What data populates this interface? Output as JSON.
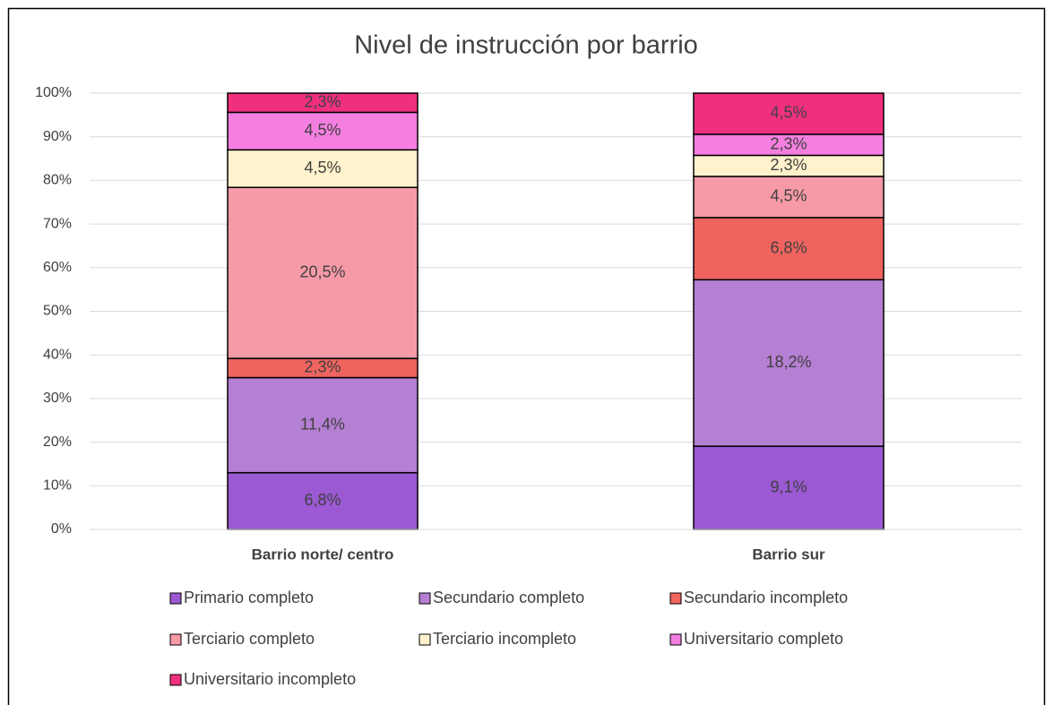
{
  "chart_data": {
    "type": "bar",
    "stacking": "percent",
    "title": "Nivel de instrucción por barrio",
    "categories": [
      "Barrio norte/ centro",
      "Barrio sur"
    ],
    "series": [
      {
        "name": "Primario completo",
        "color": "#9b59d3",
        "values": [
          6.8,
          9.1
        ],
        "value_labels": [
          "6,8%",
          "9,1%"
        ]
      },
      {
        "name": "Secundario completo",
        "color": "#b57fd3",
        "values": [
          11.4,
          18.2
        ],
        "value_labels": [
          "11,4%",
          "18,2%"
        ]
      },
      {
        "name": "Secundario incompleto",
        "color": "#f0645f",
        "values": [
          2.3,
          6.8
        ],
        "value_labels": [
          "2,3%",
          "6,8%"
        ]
      },
      {
        "name": "Terciario completo",
        "color": "#f79aa8",
        "values": [
          20.5,
          4.5
        ],
        "value_labels": [
          "20,5%",
          "4,5%"
        ]
      },
      {
        "name": "Terciario incompleto",
        "color": "#fff2cc",
        "values": [
          4.5,
          2.3
        ],
        "value_labels": [
          "4,5%",
          "2,3%"
        ]
      },
      {
        "name": "Universitario completo",
        "color": "#f47fe0",
        "values": [
          4.5,
          2.3
        ],
        "value_labels": [
          "4,5%",
          "2,3%"
        ]
      },
      {
        "name": "Universitario incompleto",
        "color": "#f0307f",
        "values": [
          2.3,
          4.5
        ],
        "value_labels": [
          "2,3%",
          "4,5%"
        ]
      }
    ],
    "ylim": [
      0,
      100
    ],
    "yticks": [
      {
        "value": 0,
        "label": "0%"
      },
      {
        "value": 10,
        "label": "10%"
      },
      {
        "value": 20,
        "label": "20%"
      },
      {
        "value": 30,
        "label": "30%"
      },
      {
        "value": 40,
        "label": "40%"
      },
      {
        "value": 50,
        "label": "50%"
      },
      {
        "value": 60,
        "label": "60%"
      },
      {
        "value": 70,
        "label": "70%"
      },
      {
        "value": 80,
        "label": "80%"
      },
      {
        "value": 90,
        "label": "90%"
      },
      {
        "value": 100,
        "label": "100%"
      }
    ],
    "grid": true,
    "legend": "bottom"
  }
}
